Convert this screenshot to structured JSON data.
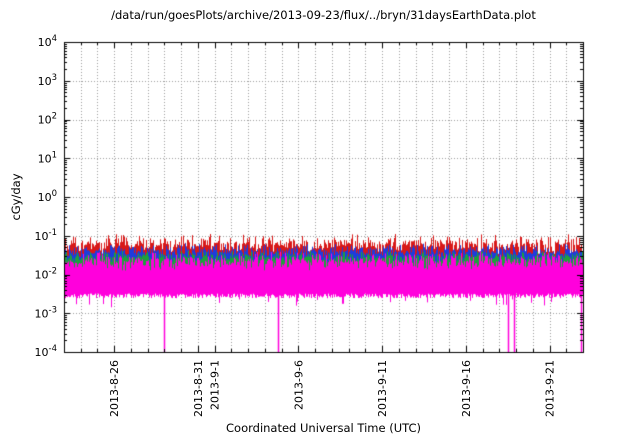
{
  "page": {
    "background": "#ffffff"
  },
  "chart_data": {
    "type": "line",
    "title": "/data/run/goesPlots/archive/2013-09-23/flux/../bryn/31daysEarthData.plot",
    "xlabel": "Coordinated Universal Time (UTC)",
    "ylabel": "cGy/day",
    "y_scale": "log10",
    "ylim_exponents": [
      -4,
      4
    ],
    "y_tick_exponents": [
      4,
      3,
      2,
      1,
      0,
      -1,
      -2,
      -3,
      -4
    ],
    "x_axis": {
      "start_date": "2013-08-23",
      "span_days": 31,
      "tick_labels": [
        "2013-8-26",
        "2013-8-31",
        "2013-9-1",
        "2013-9-6",
        "2013-9-11",
        "2013-9-16",
        "2013-9-21"
      ],
      "tick_day_offsets": [
        3,
        8,
        9,
        14,
        19,
        24,
        29
      ],
      "minor_tick_interval_days": 1
    },
    "grid": {
      "shown": true,
      "style": "dotted",
      "color": "#9a9a9a"
    },
    "series": [
      {
        "name": "red-flux-band",
        "color": "#d81818",
        "style": "noisy-band",
        "band_low": 0.018,
        "band_top_typical": 0.06,
        "band_top_max": 0.115
      },
      {
        "name": "blue-flux-band",
        "color": "#1e3cdc",
        "style": "noisy-band",
        "band_low": 0.014,
        "band_top_typical": 0.04,
        "band_top_max": 0.065
      },
      {
        "name": "green-flux-band",
        "color": "#1ea03c",
        "style": "noisy-band",
        "band_low": 0.011,
        "band_top_typical": 0.028,
        "band_top_max": 0.042
      },
      {
        "name": "magenta-flux-band",
        "color": "#ff00dc",
        "style": "noisy-fill",
        "band_low": 0.0028,
        "band_top_typical": 0.022,
        "band_top_max": 0.04,
        "dropouts_day_offsets": [
          6.0,
          12.8,
          26.5,
          26.9,
          30.9
        ],
        "dropout_floor": 0.0001
      }
    ]
  }
}
